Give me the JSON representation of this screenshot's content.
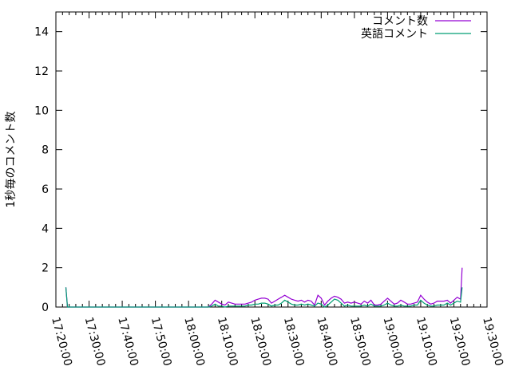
{
  "chart_data": {
    "type": "line",
    "title": "",
    "xlabel": "",
    "ylabel": "1秒毎のコメント数",
    "xlim": [
      "17:20:00",
      "19:30:00"
    ],
    "ylim": [
      0,
      15
    ],
    "x_ticks": [
      "17:20:00",
      "17:30:00",
      "17:40:00",
      "17:50:00",
      "18:00:00",
      "18:10:00",
      "18:20:00",
      "18:30:00",
      "18:40:00",
      "18:50:00",
      "19:00:00",
      "19:10:00",
      "19:20:00",
      "19:30:00"
    ],
    "y_ticks": [
      0,
      2,
      4,
      6,
      8,
      10,
      12,
      14
    ],
    "grid": false,
    "legend_position": "top-right",
    "x": [
      "17:23:00",
      "17:23:30",
      "18:06:00",
      "18:07:00",
      "18:08:00",
      "18:09:00",
      "18:10:00",
      "18:11:00",
      "18:12:00",
      "18:13:00",
      "18:14:00",
      "18:15:00",
      "18:16:00",
      "18:17:00",
      "18:18:00",
      "18:19:00",
      "18:20:00",
      "18:21:00",
      "18:22:00",
      "18:23:00",
      "18:24:00",
      "18:25:00",
      "18:26:00",
      "18:27:00",
      "18:28:00",
      "18:29:00",
      "18:30:00",
      "18:31:00",
      "18:32:00",
      "18:33:00",
      "18:34:00",
      "18:35:00",
      "18:36:00",
      "18:37:00",
      "18:38:00",
      "18:39:00",
      "18:40:00",
      "18:41:00",
      "18:42:00",
      "18:43:00",
      "18:44:00",
      "18:45:00",
      "18:46:00",
      "18:47:00",
      "18:48:00",
      "18:49:00",
      "18:50:00",
      "18:51:00",
      "18:52:00",
      "18:53:00",
      "18:54:00",
      "18:55:00",
      "18:56:00",
      "18:57:00",
      "18:58:00",
      "18:59:00",
      "19:00:00",
      "19:01:00",
      "19:02:00",
      "19:03:00",
      "19:04:00",
      "19:05:00",
      "19:06:00",
      "19:07:00",
      "19:08:00",
      "19:09:00",
      "19:10:00",
      "19:11:00",
      "19:12:00",
      "19:13:00",
      "19:14:00",
      "19:15:00",
      "19:16:00",
      "19:17:00",
      "19:18:00",
      "19:19:00",
      "19:20:00",
      "19:21:00",
      "19:22:00",
      "19:22:30"
    ],
    "series": [
      {
        "name": "コメント数",
        "color": "#9400d3",
        "values": [
          1,
          0,
          0,
          0.15,
          0.35,
          0.25,
          0.15,
          0.1,
          0.25,
          0.2,
          0.15,
          0.15,
          0.15,
          0.15,
          0.2,
          0.25,
          0.35,
          0.4,
          0.45,
          0.45,
          0.4,
          0.2,
          0.3,
          0.4,
          0.5,
          0.6,
          0.5,
          0.4,
          0.35,
          0.3,
          0.35,
          0.25,
          0.35,
          0.3,
          0.1,
          0.6,
          0.45,
          0.1,
          0.3,
          0.45,
          0.55,
          0.5,
          0.4,
          0.2,
          0.25,
          0.2,
          0.25,
          0.2,
          0.15,
          0.3,
          0.2,
          0.35,
          0.1,
          0.1,
          0.15,
          0.3,
          0.45,
          0.3,
          0.15,
          0.2,
          0.35,
          0.25,
          0.15,
          0.15,
          0.2,
          0.25,
          0.6,
          0.4,
          0.25,
          0.15,
          0.2,
          0.3,
          0.3,
          0.3,
          0.35,
          0.2,
          0.35,
          0.5,
          0.4,
          2.0
        ]
      },
      {
        "name": "英語コメント",
        "color": "#009e73",
        "values": [
          1,
          0,
          0,
          0.05,
          0.15,
          0.05,
          0.05,
          0,
          0.05,
          0.05,
          0.05,
          0.05,
          0.05,
          0.05,
          0.1,
          0.1,
          0.15,
          0.15,
          0.2,
          0.2,
          0.15,
          0.05,
          0.1,
          0.1,
          0.2,
          0.35,
          0.25,
          0.15,
          0.1,
          0.1,
          0.15,
          0.1,
          0.15,
          0.1,
          0.05,
          0.2,
          0.15,
          0,
          0.1,
          0.25,
          0.4,
          0.35,
          0.2,
          0.05,
          0.1,
          0.05,
          0.05,
          0.05,
          0.05,
          0.1,
          0.05,
          0.15,
          0.05,
          0.05,
          0.05,
          0.1,
          0.2,
          0.1,
          0.05,
          0.05,
          0.1,
          0.05,
          0.05,
          0.05,
          0.1,
          0.1,
          0.35,
          0.2,
          0.1,
          0.05,
          0.05,
          0.1,
          0.1,
          0.1,
          0.2,
          0.1,
          0.2,
          0.3,
          0.25,
          1.0
        ]
      }
    ]
  }
}
